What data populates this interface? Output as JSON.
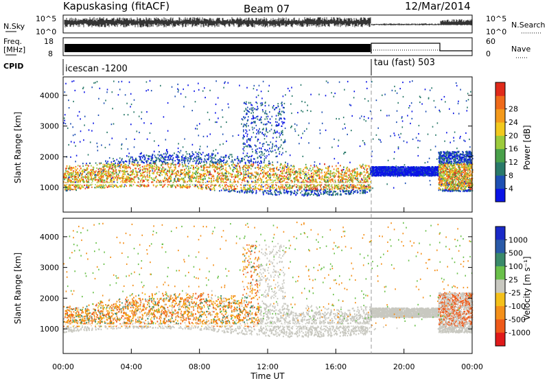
{
  "header": {
    "station": "Kapuskasing (fitACF)",
    "beam": "Beam 07",
    "date": "12/Mar/2014"
  },
  "status_panels": {
    "nsky_label": "N.Sky",
    "nsky_ticks": [
      "10^5",
      "10^0"
    ],
    "nsearch_label": "N.Search",
    "freq_label_1": "Freq.",
    "freq_label_2": "[MHz]",
    "freq_ticks": [
      "18",
      "8"
    ],
    "nave_label": "Nave",
    "nave_ticks": [
      "60",
      "0"
    ],
    "cpid_label": "CPID",
    "cpid_1": "icescan -1200",
    "cpid_2": "tau (fast) 503"
  },
  "chart_data": [
    {
      "type": "heatmap",
      "name": "power",
      "ylabel": "Slant Range [km]",
      "xlabel": "",
      "x_range_hours": [
        0,
        24
      ],
      "ylim": [
        200,
        4600
      ],
      "yticks": [
        1000,
        2000,
        3000,
        4000
      ],
      "colorbar_label": "Power [dB]",
      "colorbar_ticks": [
        "4",
        "8",
        "12",
        "16",
        "20",
        "24",
        "28"
      ],
      "colorbar_colors": [
        "#0a14e6",
        "#1e50b4",
        "#2a7a6a",
        "#49a04a",
        "#9ccb3c",
        "#f2c91e",
        "#f49a1c",
        "#ef6a1a",
        "#e02a1a"
      ]
    },
    {
      "type": "heatmap",
      "name": "velocity",
      "ylabel": "Slant Range [km]",
      "xlabel": "Time UT",
      "x_range_hours": [
        0,
        24
      ],
      "xtick_labels": [
        "00:00",
        "04:00",
        "08:00",
        "12:00",
        "16:00",
        "20:00",
        "00:00"
      ],
      "ylim": [
        200,
        4600
      ],
      "yticks": [
        1000,
        2000,
        3000,
        4000
      ],
      "colorbar_label": "Velocity [m s⁻¹]",
      "colorbar_ticks": [
        "1000",
        "500",
        "100",
        "25",
        "-25",
        "-100",
        "-500",
        "-1000"
      ],
      "colorbar_colors": [
        "#1a2ac8",
        "#2a5aa8",
        "#3a8a6a",
        "#6ac04a",
        "#c8c8c0",
        "#f4c01a",
        "#f4901a",
        "#ef5a1a",
        "#e01a1a"
      ]
    }
  ]
}
